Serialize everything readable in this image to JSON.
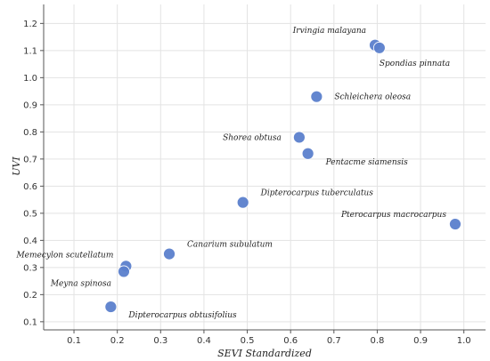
{
  "chart_data": {
    "type": "scatter",
    "title": "",
    "xlabel": "SEVI Standardized",
    "ylabel": "UVI",
    "xlim": [
      0.03,
      1.05
    ],
    "ylim": [
      0.07,
      1.27
    ],
    "x_ticks": [
      0.1,
      0.2,
      0.3,
      0.4,
      0.5,
      0.6,
      0.7,
      0.8,
      0.9,
      1.0
    ],
    "x_tick_labels": [
      "0.1",
      "0.2",
      "0.3",
      "0.4",
      "0.5",
      "0.6",
      "0.7",
      "0.8",
      "0.9",
      "1.0"
    ],
    "y_ticks": [
      0.1,
      0.2,
      0.3,
      0.4,
      0.5,
      0.6,
      0.7,
      0.8,
      0.9,
      1.0,
      1.1,
      1.2
    ],
    "y_tick_labels": [
      "0.1",
      "0.2",
      "0.3",
      "0.4",
      "0.5",
      "0.6",
      "0.7",
      "0.8",
      "0.9",
      "1.0",
      "1.1",
      "1.2"
    ],
    "grid": true,
    "marker_color": "#5b7fcc",
    "points": [
      {
        "label": "Irvingia malayana",
        "x": 0.795,
        "y": 1.12,
        "label_anchor": "end",
        "label_dx": -10,
        "label_dy": -14
      },
      {
        "label": "Spondias pinnata",
        "x": 0.805,
        "y": 1.11,
        "label_anchor": "start",
        "label_dx": 0,
        "label_dy": 20
      },
      {
        "label": "Schleichera oleosa",
        "x": 0.66,
        "y": 0.93,
        "label_anchor": "start",
        "label_dx": 20,
        "label_dy": 3
      },
      {
        "label": "Shorea obtusa",
        "x": 0.62,
        "y": 0.78,
        "label_anchor": "end",
        "label_dx": -20,
        "label_dy": 3
      },
      {
        "label": "Pentacme siamensis",
        "x": 0.64,
        "y": 0.72,
        "label_anchor": "start",
        "label_dx": 20,
        "label_dy": 12
      },
      {
        "label": "Dipterocarpus tuberculatus",
        "x": 0.49,
        "y": 0.54,
        "label_anchor": "start",
        "label_dx": 20,
        "label_dy": -8
      },
      {
        "label": "Pterocarpus macrocarpus",
        "x": 0.98,
        "y": 0.46,
        "label_anchor": "end",
        "label_dx": -10,
        "label_dy": -8
      },
      {
        "label": "Canarium subulatum",
        "x": 0.32,
        "y": 0.35,
        "label_anchor": "start",
        "label_dx": 20,
        "label_dy": -8
      },
      {
        "label": "Memecylon scutellatum",
        "x": 0.22,
        "y": 0.305,
        "label_anchor": "end",
        "label_dx": -14,
        "label_dy": -10
      },
      {
        "label": "Meyna spinosa",
        "x": 0.215,
        "y": 0.285,
        "label_anchor": "end",
        "label_dx": -14,
        "label_dy": 16
      },
      {
        "label": "Dipterocarpus obtusifolius",
        "x": 0.185,
        "y": 0.155,
        "label_anchor": "start",
        "label_dx": 20,
        "label_dy": 12
      }
    ]
  }
}
